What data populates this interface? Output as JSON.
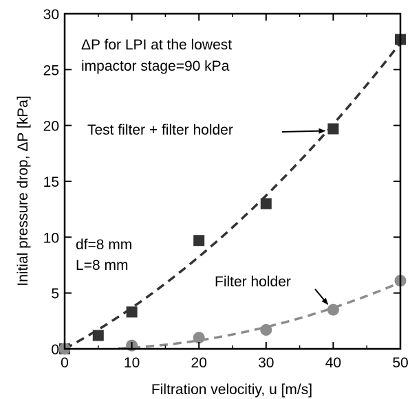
{
  "chart_data": {
    "type": "scatter",
    "xlabel": "Filtration velocitiy, u [m/s]",
    "ylabel": "Initial pressure drop, ΔP [kPa]",
    "xlim": [
      0,
      50
    ],
    "ylim": [
      0,
      30
    ],
    "x_ticks": [
      0,
      10,
      20,
      30,
      40,
      50
    ],
    "y_ticks": [
      0,
      5,
      10,
      15,
      20,
      25,
      30
    ],
    "grid": false,
    "series": [
      {
        "name": "Test filter + filter holder",
        "marker": "square",
        "color": "#333333",
        "x": [
          0,
          5,
          10,
          20,
          30,
          40,
          50
        ],
        "y": [
          0,
          1.2,
          3.3,
          9.7,
          13.0,
          19.7,
          27.7
        ],
        "fit": "dashed"
      },
      {
        "name": "Filter holder",
        "marker": "circle",
        "color": "#8c8c8c",
        "x": [
          0,
          10,
          20,
          30,
          40,
          50
        ],
        "y": [
          0,
          0.3,
          1.0,
          1.7,
          3.5,
          6.1
        ],
        "fit": "dashed"
      }
    ],
    "annotations": {
      "delta_p_note_line1": "ΔP for LPI at the lowest",
      "delta_p_note_line2": "impactor stage=90 kPa",
      "df_note": "df=8 mm",
      "l_note": "L=8 mm"
    }
  }
}
